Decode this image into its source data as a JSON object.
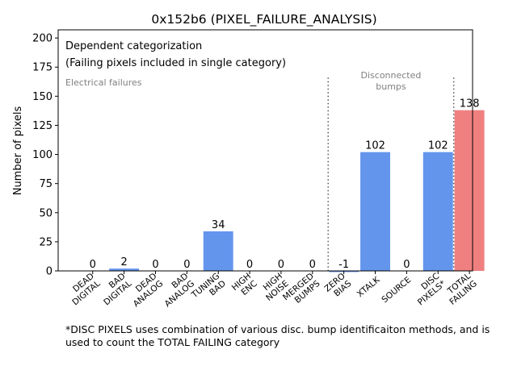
{
  "chart_data": {
    "type": "bar",
    "title": "0x152b6 (PIXEL_FAILURE_ANALYSIS)",
    "ylabel": "Number of pixels",
    "xlabel": "",
    "ylim": [
      0,
      207
    ],
    "yticks": [
      0,
      25,
      50,
      75,
      100,
      125,
      150,
      175,
      200
    ],
    "categories": [
      "DEAD\nDIGITAL",
      "BAD\nDIGITAL",
      "DEAD\nANALOG",
      "BAD\nANALOG",
      "TUNING\nBAD",
      "HIGH\nENC",
      "HIGH\nNOISE",
      "MERGED\nBUMPS",
      "ZERO\nBIAS",
      "XTALK",
      "SOURCE",
      "DISC\nPIXELS*",
      "TOTAL\nFAILING"
    ],
    "values": [
      0,
      2,
      0,
      0,
      34,
      0,
      0,
      0,
      -1,
      102,
      0,
      102,
      138
    ],
    "data_labels": [
      "0",
      "2",
      "0",
      "0",
      "34",
      "0",
      "0",
      "0",
      "-1",
      "102",
      "0",
      "102",
      "138"
    ],
    "bar_colors": [
      "#6495ed",
      "#6495ed",
      "#6495ed",
      "#6495ed",
      "#6495ed",
      "#6495ed",
      "#6495ed",
      "#6495ed",
      "#6495ed",
      "#6495ed",
      "#6495ed",
      "#6495ed",
      "#f08080"
    ],
    "annotations": {
      "categorization_line1": "Dependent categorization",
      "categorization_line2": "(Failing pixels included in single category)",
      "electrical_label": "Electrical failures",
      "disconnected_label_line1": "Disconnected",
      "disconnected_label_line2": "bumps"
    },
    "separators_after_index": [
      7,
      11
    ],
    "grid": false,
    "tick_label_rotation": 40
  },
  "footnote": "*DISC PIXELS uses combination of various disc. bump identificaiton methods, and is used to count the TOTAL FAILING category",
  "colors": {
    "bar": "#6495ed",
    "total_bar": "#f08080",
    "annotation_gray": "#808080"
  }
}
